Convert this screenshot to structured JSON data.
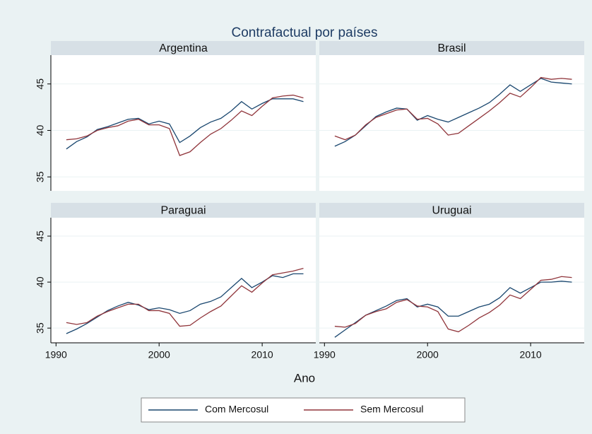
{
  "title": "Contrafactual por países",
  "x_label": "Ano",
  "chart_data": [
    {
      "type": "line",
      "title": "Argentina",
      "x": [
        1991,
        1992,
        1993,
        1994,
        1995,
        1996,
        1997,
        1998,
        1999,
        2000,
        2001,
        2002,
        2003,
        2004,
        2005,
        2006,
        2007,
        2008,
        2009,
        2010,
        2011,
        2012,
        2013,
        2014
      ],
      "series": [
        {
          "name": "Com Mercosul",
          "color": "#1a476f",
          "values": [
            38.0,
            38.8,
            39.3,
            40.1,
            40.4,
            40.8,
            41.2,
            41.3,
            40.7,
            41.0,
            40.7,
            38.7,
            39.4,
            40.3,
            40.9,
            41.3,
            42.1,
            43.1,
            42.3,
            42.9,
            43.4,
            43.4,
            43.4,
            43.1
          ]
        },
        {
          "name": "Sem Mercosul",
          "color": "#90353b",
          "values": [
            39.0,
            39.1,
            39.4,
            40.0,
            40.3,
            40.5,
            41.0,
            41.2,
            40.6,
            40.6,
            40.2,
            37.3,
            37.7,
            38.7,
            39.6,
            40.2,
            41.1,
            42.1,
            41.6,
            42.6,
            43.5,
            43.7,
            43.8,
            43.5
          ]
        }
      ],
      "xlim": [
        1989.5,
        2015.2
      ],
      "ylim": [
        33.5,
        48.1
      ],
      "yticks": [
        35,
        40,
        45
      ],
      "grid": true
    },
    {
      "type": "line",
      "title": "Brasil",
      "x": [
        1991,
        1992,
        1993,
        1994,
        1995,
        1996,
        1997,
        1998,
        1999,
        2000,
        2001,
        2002,
        2003,
        2004,
        2005,
        2006,
        2007,
        2008,
        2009,
        2010,
        2011,
        2012,
        2013,
        2014
      ],
      "series": [
        {
          "name": "Com Mercosul",
          "color": "#1a476f",
          "values": [
            38.3,
            38.8,
            39.5,
            40.5,
            41.5,
            42.0,
            42.4,
            42.3,
            41.1,
            41.6,
            41.2,
            40.9,
            41.4,
            41.9,
            42.4,
            43.0,
            43.9,
            44.9,
            44.2,
            44.9,
            45.6,
            45.2,
            45.1,
            45.0
          ]
        },
        {
          "name": "Sem Mercosul",
          "color": "#90353b",
          "values": [
            39.4,
            39.0,
            39.5,
            40.6,
            41.4,
            41.8,
            42.2,
            42.3,
            41.2,
            41.3,
            40.7,
            39.5,
            39.7,
            40.5,
            41.3,
            42.1,
            43.0,
            44.0,
            43.6,
            44.6,
            45.7,
            45.5,
            45.6,
            45.5
          ]
        }
      ],
      "xlim": [
        1989.5,
        2015.2
      ],
      "ylim": [
        33.5,
        48.1
      ],
      "yticks": [
        35,
        40,
        45
      ],
      "grid": true
    },
    {
      "type": "line",
      "title": "Paraguai",
      "x": [
        1991,
        1992,
        1993,
        1994,
        1995,
        1996,
        1997,
        1998,
        1999,
        2000,
        2001,
        2002,
        2003,
        2004,
        2005,
        2006,
        2007,
        2008,
        2009,
        2010,
        2011,
        2012,
        2013,
        2014
      ],
      "series": [
        {
          "name": "Com Mercosul",
          "color": "#1a476f",
          "values": [
            34.4,
            34.9,
            35.5,
            36.2,
            36.9,
            37.4,
            37.8,
            37.5,
            37.0,
            37.2,
            37.0,
            36.6,
            36.9,
            37.6,
            37.9,
            38.4,
            39.4,
            40.4,
            39.4,
            40.0,
            40.7,
            40.5,
            40.9,
            40.9
          ]
        },
        {
          "name": "Sem Mercosul",
          "color": "#90353b",
          "values": [
            35.6,
            35.4,
            35.6,
            36.3,
            36.8,
            37.2,
            37.6,
            37.6,
            36.9,
            36.9,
            36.6,
            35.2,
            35.3,
            36.1,
            36.8,
            37.4,
            38.5,
            39.6,
            38.9,
            39.9,
            40.8,
            41.0,
            41.2,
            41.5
          ]
        }
      ],
      "xlim": [
        1989.5,
        2015.2
      ],
      "ylim": [
        33.4,
        47.0
      ],
      "xticks": [
        1990,
        2000,
        2010
      ],
      "yticks": [
        35,
        40,
        45
      ],
      "grid": true
    },
    {
      "type": "line",
      "title": "Uruguai",
      "x": [
        1991,
        1992,
        1993,
        1994,
        1995,
        1996,
        1997,
        1998,
        1999,
        2000,
        2001,
        2002,
        2003,
        2004,
        2005,
        2006,
        2007,
        2008,
        2009,
        2010,
        2011,
        2012,
        2013,
        2014
      ],
      "series": [
        {
          "name": "Com Mercosul",
          "color": "#1a476f",
          "values": [
            34.0,
            34.8,
            35.6,
            36.4,
            36.9,
            37.4,
            38.0,
            38.2,
            37.3,
            37.6,
            37.3,
            36.3,
            36.3,
            36.8,
            37.3,
            37.6,
            38.3,
            39.4,
            38.8,
            39.4,
            40.0,
            40.0,
            40.1,
            40.0
          ]
        },
        {
          "name": "Sem Mercosul",
          "color": "#90353b",
          "values": [
            35.2,
            35.1,
            35.5,
            36.4,
            36.8,
            37.1,
            37.8,
            38.1,
            37.4,
            37.3,
            36.8,
            34.9,
            34.6,
            35.3,
            36.1,
            36.7,
            37.5,
            38.6,
            38.2,
            39.2,
            40.2,
            40.3,
            40.6,
            40.5
          ]
        }
      ],
      "xlim": [
        1989.5,
        2015.2
      ],
      "ylim": [
        33.4,
        47.0
      ],
      "xticks": [
        1990,
        2000,
        2010
      ],
      "yticks": [
        35,
        40,
        45
      ],
      "grid": true
    }
  ]
}
